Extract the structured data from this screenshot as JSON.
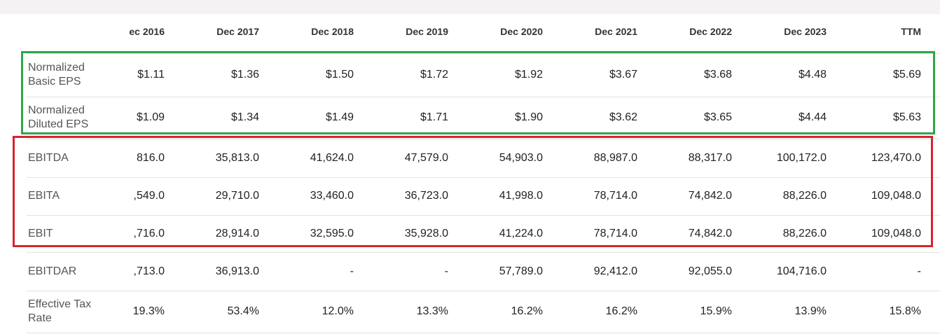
{
  "table": {
    "columns": [
      "ec 2016",
      "Dec 2017",
      "Dec 2018",
      "Dec 2019",
      "Dec 2020",
      "Dec 2021",
      "Dec 2022",
      "Dec 2023",
      "TTM"
    ],
    "rows": [
      {
        "label": "Normalized Basic EPS",
        "values": [
          "$1.11",
          "$1.36",
          "$1.50",
          "$1.72",
          "$1.92",
          "$3.67",
          "$3.68",
          "$4.48",
          "$5.69"
        ]
      },
      {
        "label": "Normalized Diluted EPS",
        "values": [
          "$1.09",
          "$1.34",
          "$1.49",
          "$1.71",
          "$1.90",
          "$3.62",
          "$3.65",
          "$4.44",
          "$5.63"
        ]
      },
      {
        "label": "EBITDA",
        "values": [
          "816.0",
          "35,813.0",
          "41,624.0",
          "47,579.0",
          "54,903.0",
          "88,987.0",
          "88,317.0",
          "100,172.0",
          "123,470.0"
        ]
      },
      {
        "label": "EBITA",
        "values": [
          ",549.0",
          "29,710.0",
          "33,460.0",
          "36,723.0",
          "41,998.0",
          "78,714.0",
          "74,842.0",
          "88,226.0",
          "109,048.0"
        ]
      },
      {
        "label": "EBIT",
        "values": [
          ",716.0",
          "28,914.0",
          "32,595.0",
          "35,928.0",
          "41,224.0",
          "78,714.0",
          "74,842.0",
          "88,226.0",
          "109,048.0"
        ]
      },
      {
        "label": "EBITDAR",
        "values": [
          ",713.0",
          "36,913.0",
          "-",
          "-",
          "57,789.0",
          "92,412.0",
          "92,055.0",
          "104,716.0",
          "-"
        ]
      },
      {
        "label": "Effective Tax Rate",
        "values": [
          "19.3%",
          "53.4%",
          "12.0%",
          "13.3%",
          "16.2%",
          "16.2%",
          "15.9%",
          "13.9%",
          "15.8%"
        ]
      }
    ]
  }
}
